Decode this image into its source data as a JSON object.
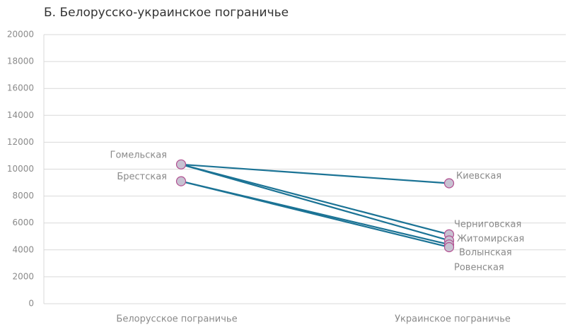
{
  "chart_data": {
    "type": "slope",
    "title": "Б. Белорусско-украинское пограничье",
    "categories": [
      "Белорусское пограничье",
      "Украинское пограничье"
    ],
    "left": [
      {
        "name": "Гомельская",
        "value": 10350
      },
      {
        "name": "Брестская",
        "value": 9100
      }
    ],
    "right": [
      {
        "name": "Киевская",
        "value": 8950,
        "from": "Гомельская"
      },
      {
        "name": "Черниговская",
        "value": 5150,
        "from": "Гомельская"
      },
      {
        "name": "Житомирская",
        "value": 4700,
        "from": "Гомельская"
      },
      {
        "name": "Волынская",
        "value": 4400,
        "from": "Брестская"
      },
      {
        "name": "Ровенская",
        "value": 4200,
        "from": "Брестская"
      }
    ],
    "line_color": "#1b7395",
    "marker_fill": "#c8c2d2",
    "marker_stroke": "#b24f90",
    "ylim": [
      0,
      20000
    ],
    "yticks": [
      0,
      2000,
      4000,
      6000,
      8000,
      10000,
      12000,
      14000,
      16000,
      18000,
      20000
    ],
    "grid": true
  }
}
